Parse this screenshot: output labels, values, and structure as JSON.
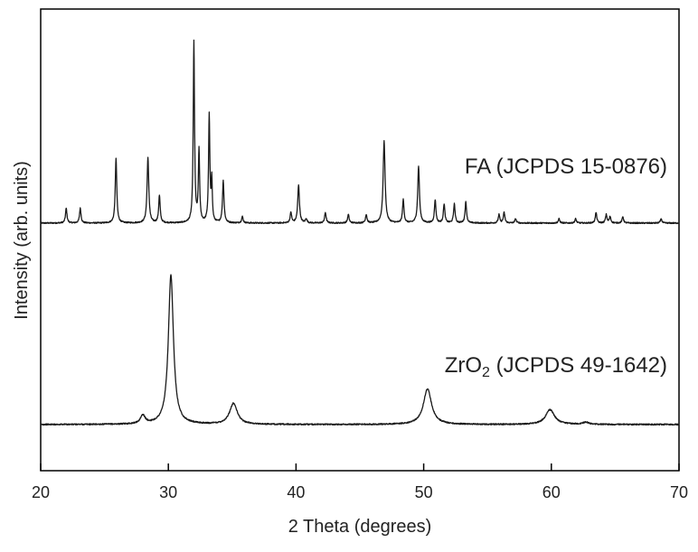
{
  "chart_data": {
    "type": "line",
    "xlabel": "2 Theta (degrees)",
    "ylabel": "Intensity (arb. units)",
    "xlim": [
      20,
      70
    ],
    "ylim": [
      0,
      2.2
    ],
    "xticks": [
      20,
      30,
      40,
      50,
      60,
      70
    ],
    "grid": false,
    "legend": "inline labels",
    "colors": {
      "line": "#1a1a1a",
      "axis": "#000000"
    },
    "series": [
      {
        "name": "FA (JCPDS 15-0876)",
        "label_parts": {
          "base": "FA",
          "sub": "",
          "rest": " (JCPDS 15-0876)"
        },
        "baseline": 1.18,
        "noise": 0.003,
        "peaks": [
          {
            "x": 22.0,
            "h": 0.07,
            "w": 0.07
          },
          {
            "x": 23.1,
            "h": 0.07,
            "w": 0.07
          },
          {
            "x": 25.9,
            "h": 0.31,
            "w": 0.07
          },
          {
            "x": 28.4,
            "h": 0.31,
            "w": 0.08
          },
          {
            "x": 29.3,
            "h": 0.13,
            "w": 0.07
          },
          {
            "x": 32.0,
            "h": 0.86,
            "w": 0.06
          },
          {
            "x": 32.4,
            "h": 0.34,
            "w": 0.06
          },
          {
            "x": 33.2,
            "h": 0.51,
            "w": 0.06
          },
          {
            "x": 33.4,
            "h": 0.2,
            "w": 0.05
          },
          {
            "x": 34.3,
            "h": 0.2,
            "w": 0.07
          },
          {
            "x": 35.8,
            "h": 0.03,
            "w": 0.07
          },
          {
            "x": 39.6,
            "h": 0.05,
            "w": 0.07
          },
          {
            "x": 40.2,
            "h": 0.18,
            "w": 0.08
          },
          {
            "x": 40.8,
            "h": 0.02,
            "w": 0.07
          },
          {
            "x": 42.3,
            "h": 0.05,
            "w": 0.07
          },
          {
            "x": 44.1,
            "h": 0.04,
            "w": 0.07
          },
          {
            "x": 45.5,
            "h": 0.04,
            "w": 0.07
          },
          {
            "x": 46.9,
            "h": 0.39,
            "w": 0.09
          },
          {
            "x": 48.4,
            "h": 0.11,
            "w": 0.07
          },
          {
            "x": 49.6,
            "h": 0.27,
            "w": 0.08
          },
          {
            "x": 50.9,
            "h": 0.11,
            "w": 0.07
          },
          {
            "x": 51.6,
            "h": 0.09,
            "w": 0.07
          },
          {
            "x": 52.4,
            "h": 0.09,
            "w": 0.07
          },
          {
            "x": 53.3,
            "h": 0.1,
            "w": 0.07
          },
          {
            "x": 55.9,
            "h": 0.04,
            "w": 0.07
          },
          {
            "x": 56.3,
            "h": 0.05,
            "w": 0.07
          },
          {
            "x": 57.2,
            "h": 0.02,
            "w": 0.07
          },
          {
            "x": 60.6,
            "h": 0.02,
            "w": 0.07
          },
          {
            "x": 61.9,
            "h": 0.02,
            "w": 0.07
          },
          {
            "x": 63.5,
            "h": 0.05,
            "w": 0.07
          },
          {
            "x": 64.3,
            "h": 0.04,
            "w": 0.07
          },
          {
            "x": 64.6,
            "h": 0.03,
            "w": 0.07
          },
          {
            "x": 65.6,
            "h": 0.03,
            "w": 0.07
          },
          {
            "x": 68.6,
            "h": 0.02,
            "w": 0.07
          }
        ]
      },
      {
        "name": "ZrO2 (JCPDS 49-1642)",
        "label_parts": {
          "base": "ZrO",
          "sub": "2",
          "rest": " (JCPDS 49-1642)"
        },
        "baseline": 0.22,
        "noise": 0.003,
        "peaks": [
          {
            "x": 28.0,
            "h": 0.04,
            "w": 0.22
          },
          {
            "x": 30.2,
            "h": 0.71,
            "w": 0.24
          },
          {
            "x": 35.1,
            "h": 0.1,
            "w": 0.36
          },
          {
            "x": 50.3,
            "h": 0.17,
            "w": 0.38
          },
          {
            "x": 59.9,
            "h": 0.07,
            "w": 0.42
          },
          {
            "x": 62.7,
            "h": 0.01,
            "w": 0.3
          }
        ]
      }
    ]
  }
}
